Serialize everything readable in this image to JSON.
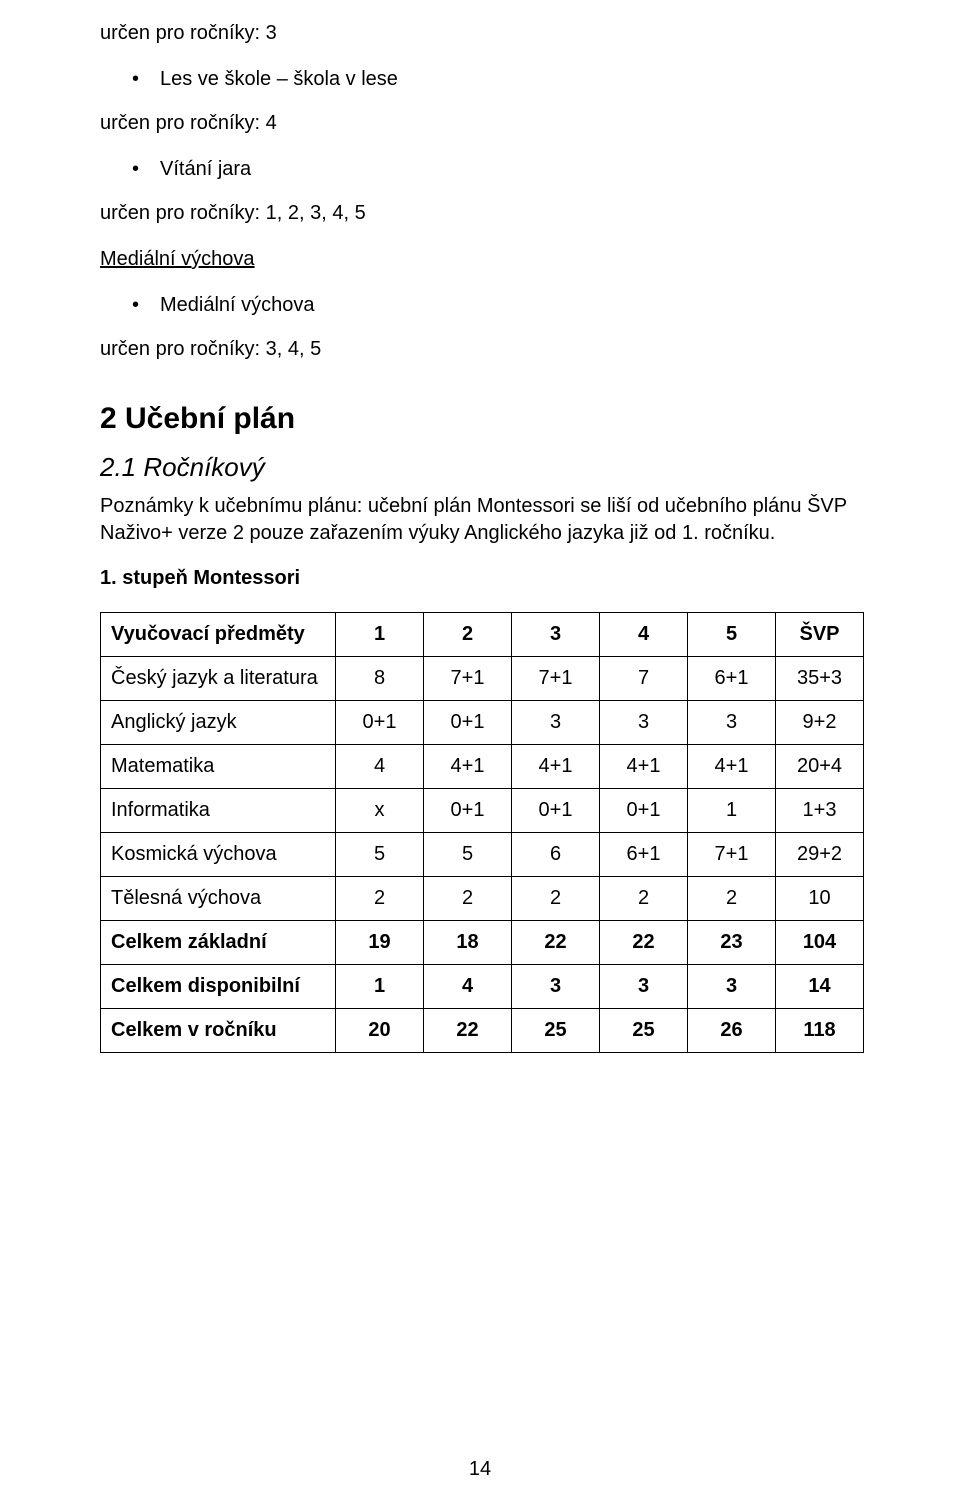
{
  "text": {
    "grade3": "určen pro ročníky: 3",
    "bullet1": "Les ve škole – škola v lese",
    "grade4": "určen pro ročníky: 4",
    "bullet2": "Vítání jara",
    "grade12345": "určen pro ročníky: 1, 2, 3, 4, 5",
    "mediaHeading": "Mediální výchova",
    "bullet3": "Mediální výchova",
    "grade345": "určen pro ročníky: 3, 4, 5",
    "h1": "2 Učební plán",
    "h2": "2.1 Ročníkový",
    "note": "Poznámky k učebnímu plánu: učební plán Montessori se liší od učebního plánu ŠVP Naživo+ verze 2 pouze zařazením výuky Anglického jazyka již od 1. ročníku.",
    "subhead": "1. stupeň Montessori",
    "pagenum": "14"
  },
  "table": {
    "columns": [
      "Vyučovací předměty",
      "1",
      "2",
      "3",
      "4",
      "5",
      "ŠVP"
    ],
    "rows": [
      {
        "label": "Český jazyk a literatura",
        "vals": [
          "8",
          "7+1",
          "7+1",
          "7",
          "6+1",
          "35+3"
        ],
        "bold": false
      },
      {
        "label": "Anglický jazyk",
        "vals": [
          "0+1",
          "0+1",
          "3",
          "3",
          "3",
          "9+2"
        ],
        "bold": false
      },
      {
        "label": "Matematika",
        "vals": [
          "4",
          "4+1",
          "4+1",
          "4+1",
          "4+1",
          "20+4"
        ],
        "bold": false
      },
      {
        "label": "Informatika",
        "vals": [
          "x",
          "0+1",
          "0+1",
          "0+1",
          "1",
          "1+3"
        ],
        "bold": false
      },
      {
        "label": "Kosmická výchova",
        "vals": [
          "5",
          "5",
          "6",
          "6+1",
          "7+1",
          "29+2"
        ],
        "bold": false
      },
      {
        "label": "Tělesná výchova",
        "vals": [
          "2",
          "2",
          "2",
          "2",
          "2",
          "10"
        ],
        "bold": false
      },
      {
        "label": "Celkem základní",
        "vals": [
          "19",
          "18",
          "22",
          "22",
          "23",
          "104"
        ],
        "bold": true
      },
      {
        "label": "Celkem disponibilní",
        "vals": [
          "1",
          "4",
          "3",
          "3",
          "3",
          "14"
        ],
        "bold": true
      },
      {
        "label": "Celkem v ročníku",
        "vals": [
          "20",
          "22",
          "25",
          "25",
          "26",
          "118"
        ],
        "bold": true
      }
    ]
  }
}
